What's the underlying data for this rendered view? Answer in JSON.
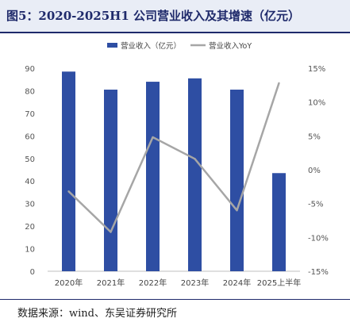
{
  "figure": {
    "title": "图5：2020-2025H1 公司营业收入及其增速（亿元）",
    "source": "数据来源：wind、东吴证券研究所"
  },
  "colors": {
    "bar": "#2e4ea3",
    "line": "#a6a6a6",
    "title_bg": "#e9edf6",
    "title_text": "#1f2a6b"
  },
  "chart_data": {
    "type": "bar",
    "categories": [
      "2020年",
      "2021年",
      "2022年",
      "2023年",
      "2024年",
      "2025上半年"
    ],
    "series": [
      {
        "name": "营业收入（亿元）",
        "type": "bar",
        "axis": "left",
        "values": [
          88.5,
          80.5,
          84.0,
          85.5,
          80.5,
          43.5
        ]
      },
      {
        "name": "营业收入YoY",
        "type": "line",
        "axis": "right",
        "values": [
          -3.2,
          -9.2,
          4.8,
          1.6,
          -6.0,
          12.8
        ]
      }
    ],
    "y_left": {
      "min": 0,
      "max": 90,
      "step": 10
    },
    "y_right": {
      "min": -15,
      "max": 15,
      "step": 5,
      "unit": "%"
    },
    "legend_position": "top",
    "grid": false
  }
}
